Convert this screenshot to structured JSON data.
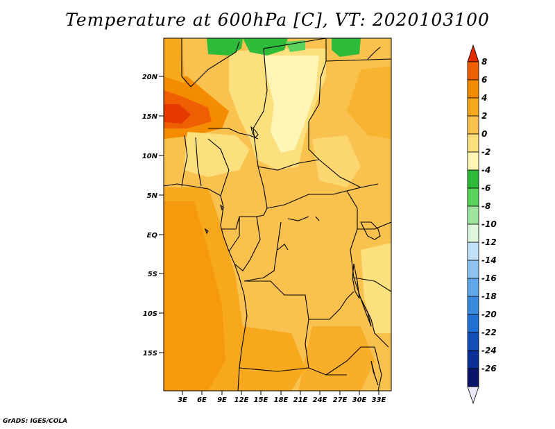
{
  "title": "Temperature at 600hPa [C], VT: 2020103100",
  "credit": "GrADS: IGES/COLA",
  "lat_labels": [
    "20N",
    "15N",
    "10N",
    "5N",
    "EQ",
    "5S",
    "10S",
    "15S"
  ],
  "lon_labels": [
    "3E",
    "6E",
    "9E",
    "12E",
    "15E",
    "18E",
    "21E",
    "24E",
    "27E",
    "30E",
    "33E"
  ],
  "colorbar": {
    "labels": [
      "8",
      "6",
      "4",
      "2",
      "0",
      "-2",
      "-4",
      "-6",
      "-8",
      "-10",
      "-12",
      "-14",
      "-16",
      "-18",
      "-20",
      "-22",
      "-24",
      "-26"
    ],
    "colors": [
      "#e22a00",
      "#ef5e00",
      "#f58c00",
      "#f7a91e",
      "#f9c24f",
      "#fde07e",
      "#fff5b6",
      "#2ebb3a",
      "#5cd35a",
      "#9fe59f",
      "#ddf6dd",
      "#bfe0f8",
      "#8fc4f1",
      "#5fa7e8",
      "#3a8be0",
      "#1f6fd4",
      "#134fb8",
      "#0a2f96",
      "#08136a",
      "#e8e8f8"
    ]
  }
}
